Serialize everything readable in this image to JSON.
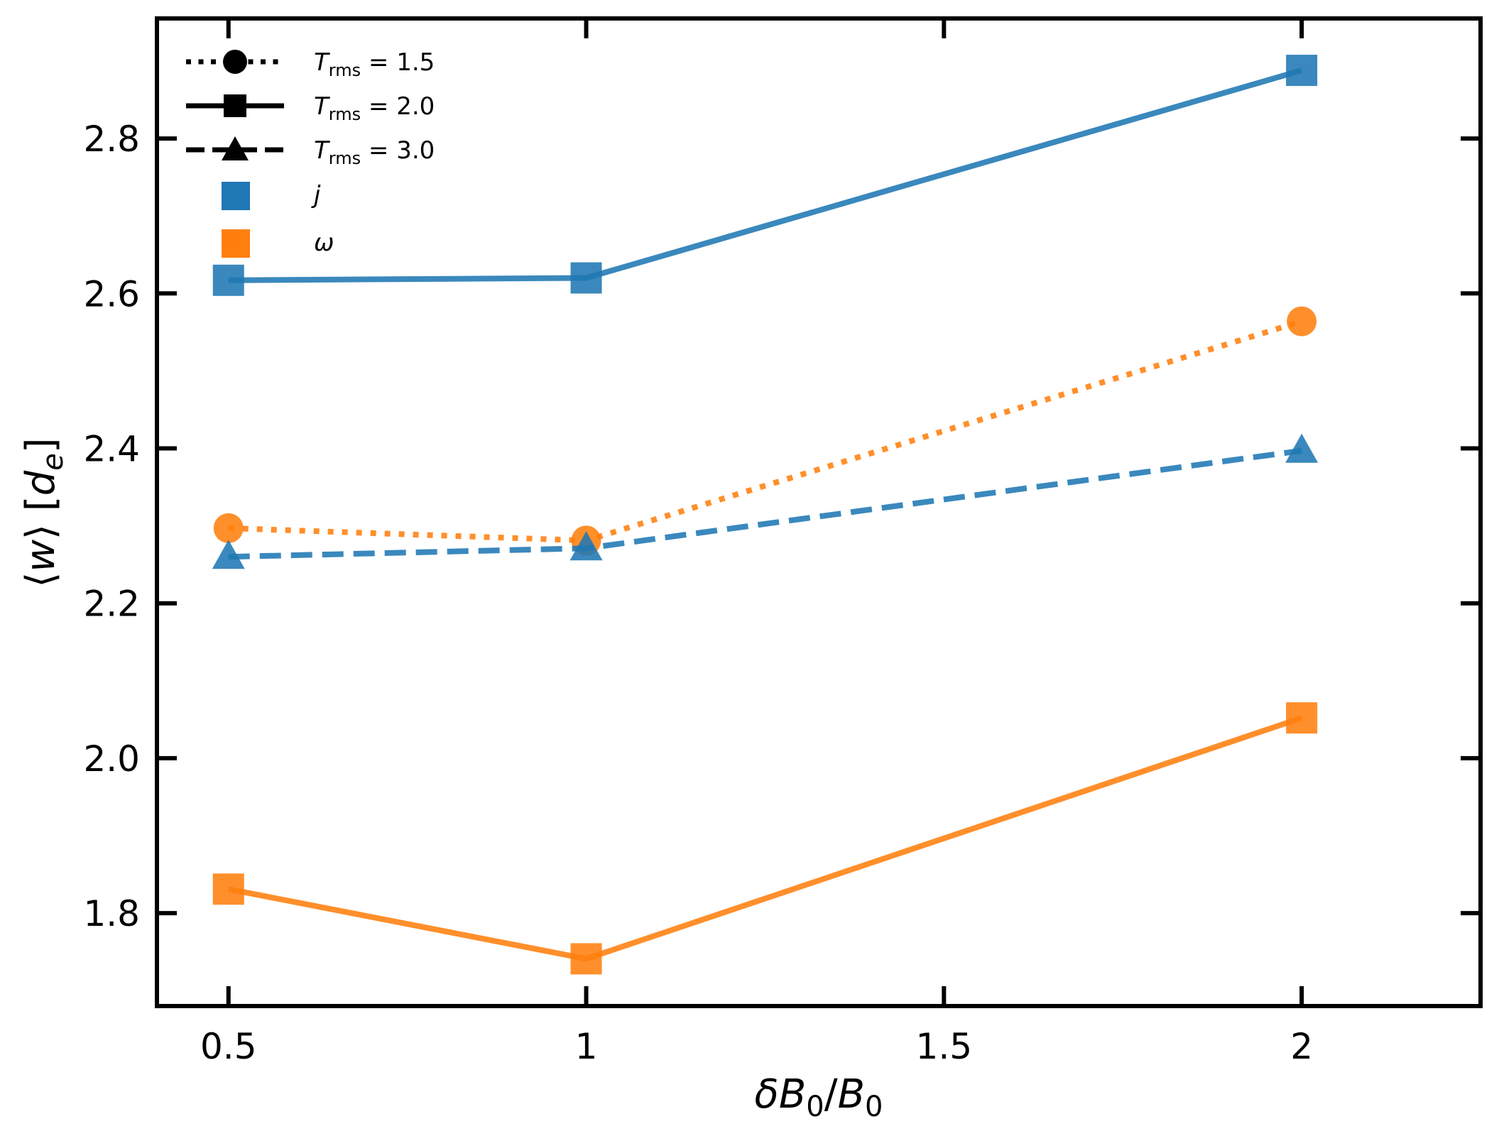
{
  "chart_data": {
    "type": "line",
    "xlabel_parts": {
      "delta": "δ",
      "B": "B",
      "sub0": "0",
      "slash": "/",
      "B2": "B",
      "sub0b": "0"
    },
    "xlabel": "δB0/B0",
    "ylabel_parts": {
      "open": "⟨",
      "w": "w",
      "close": "⟩",
      "lb": "[",
      "d": "d",
      "sub": "e",
      "rb": "]"
    },
    "ylabel": "⟨w⟩ [de]",
    "xlim": [
      0.4,
      2.25
    ],
    "ylim": [
      1.68,
      2.955
    ],
    "xticks": [
      {
        "value": 0.5,
        "label": "0.5"
      },
      {
        "value": 1,
        "label": "1"
      },
      {
        "value": 1.5,
        "label": "1.5"
      },
      {
        "value": 2,
        "label": "2"
      }
    ],
    "yticks": [
      {
        "value": 1.8,
        "label": "1.8"
      },
      {
        "value": 2.0,
        "label": "2.0"
      },
      {
        "value": 2.2,
        "label": "2.2"
      },
      {
        "value": 2.4,
        "label": "2.4"
      },
      {
        "value": 2.6,
        "label": "2.6"
      },
      {
        "value": 2.8,
        "label": "2.8"
      }
    ],
    "series": [
      {
        "name": "j, Trms = 2.0",
        "quantity": "j",
        "trms": "2.0",
        "color": "#1f77b4",
        "style": "solid",
        "marker": "square",
        "x": [
          0.5,
          1,
          2
        ],
        "y": [
          2.617,
          2.62,
          2.888
        ]
      },
      {
        "name": "omega, Trms = 1.5",
        "quantity": "ω",
        "trms": "1.5",
        "color": "#ff7f0e",
        "style": "dotted",
        "marker": "circle",
        "x": [
          0.5,
          1,
          2
        ],
        "y": [
          2.297,
          2.281,
          2.564
        ]
      },
      {
        "name": "j, Trms = 3.0",
        "quantity": "j",
        "trms": "3.0",
        "color": "#1f77b4",
        "style": "dashed",
        "marker": "triangle",
        "x": [
          0.5,
          1,
          2
        ],
        "y": [
          2.26,
          2.271,
          2.397
        ]
      },
      {
        "name": "omega, Trms = 2.0",
        "quantity": "ω",
        "trms": "2.0",
        "color": "#ff7f0e",
        "style": "solid",
        "marker": "square",
        "x": [
          0.5,
          1,
          2
        ],
        "y": [
          1.831,
          1.741,
          2.052
        ]
      }
    ],
    "legend": {
      "position": "top-left",
      "entries": [
        {
          "kind": "style",
          "style": "dotted",
          "marker": "circle",
          "T": "T",
          "sub": "rms",
          "eq": " = 1.5"
        },
        {
          "kind": "style",
          "style": "solid",
          "marker": "square",
          "T": "T",
          "sub": "rms",
          "eq": " = 2.0"
        },
        {
          "kind": "style",
          "style": "dashed",
          "marker": "triangle",
          "T": "T",
          "sub": "rms",
          "eq": " = 3.0"
        },
        {
          "kind": "color",
          "color": "#1f77b4",
          "label": "j"
        },
        {
          "kind": "color",
          "color": "#ff7f0e",
          "label": "ω"
        }
      ]
    }
  }
}
